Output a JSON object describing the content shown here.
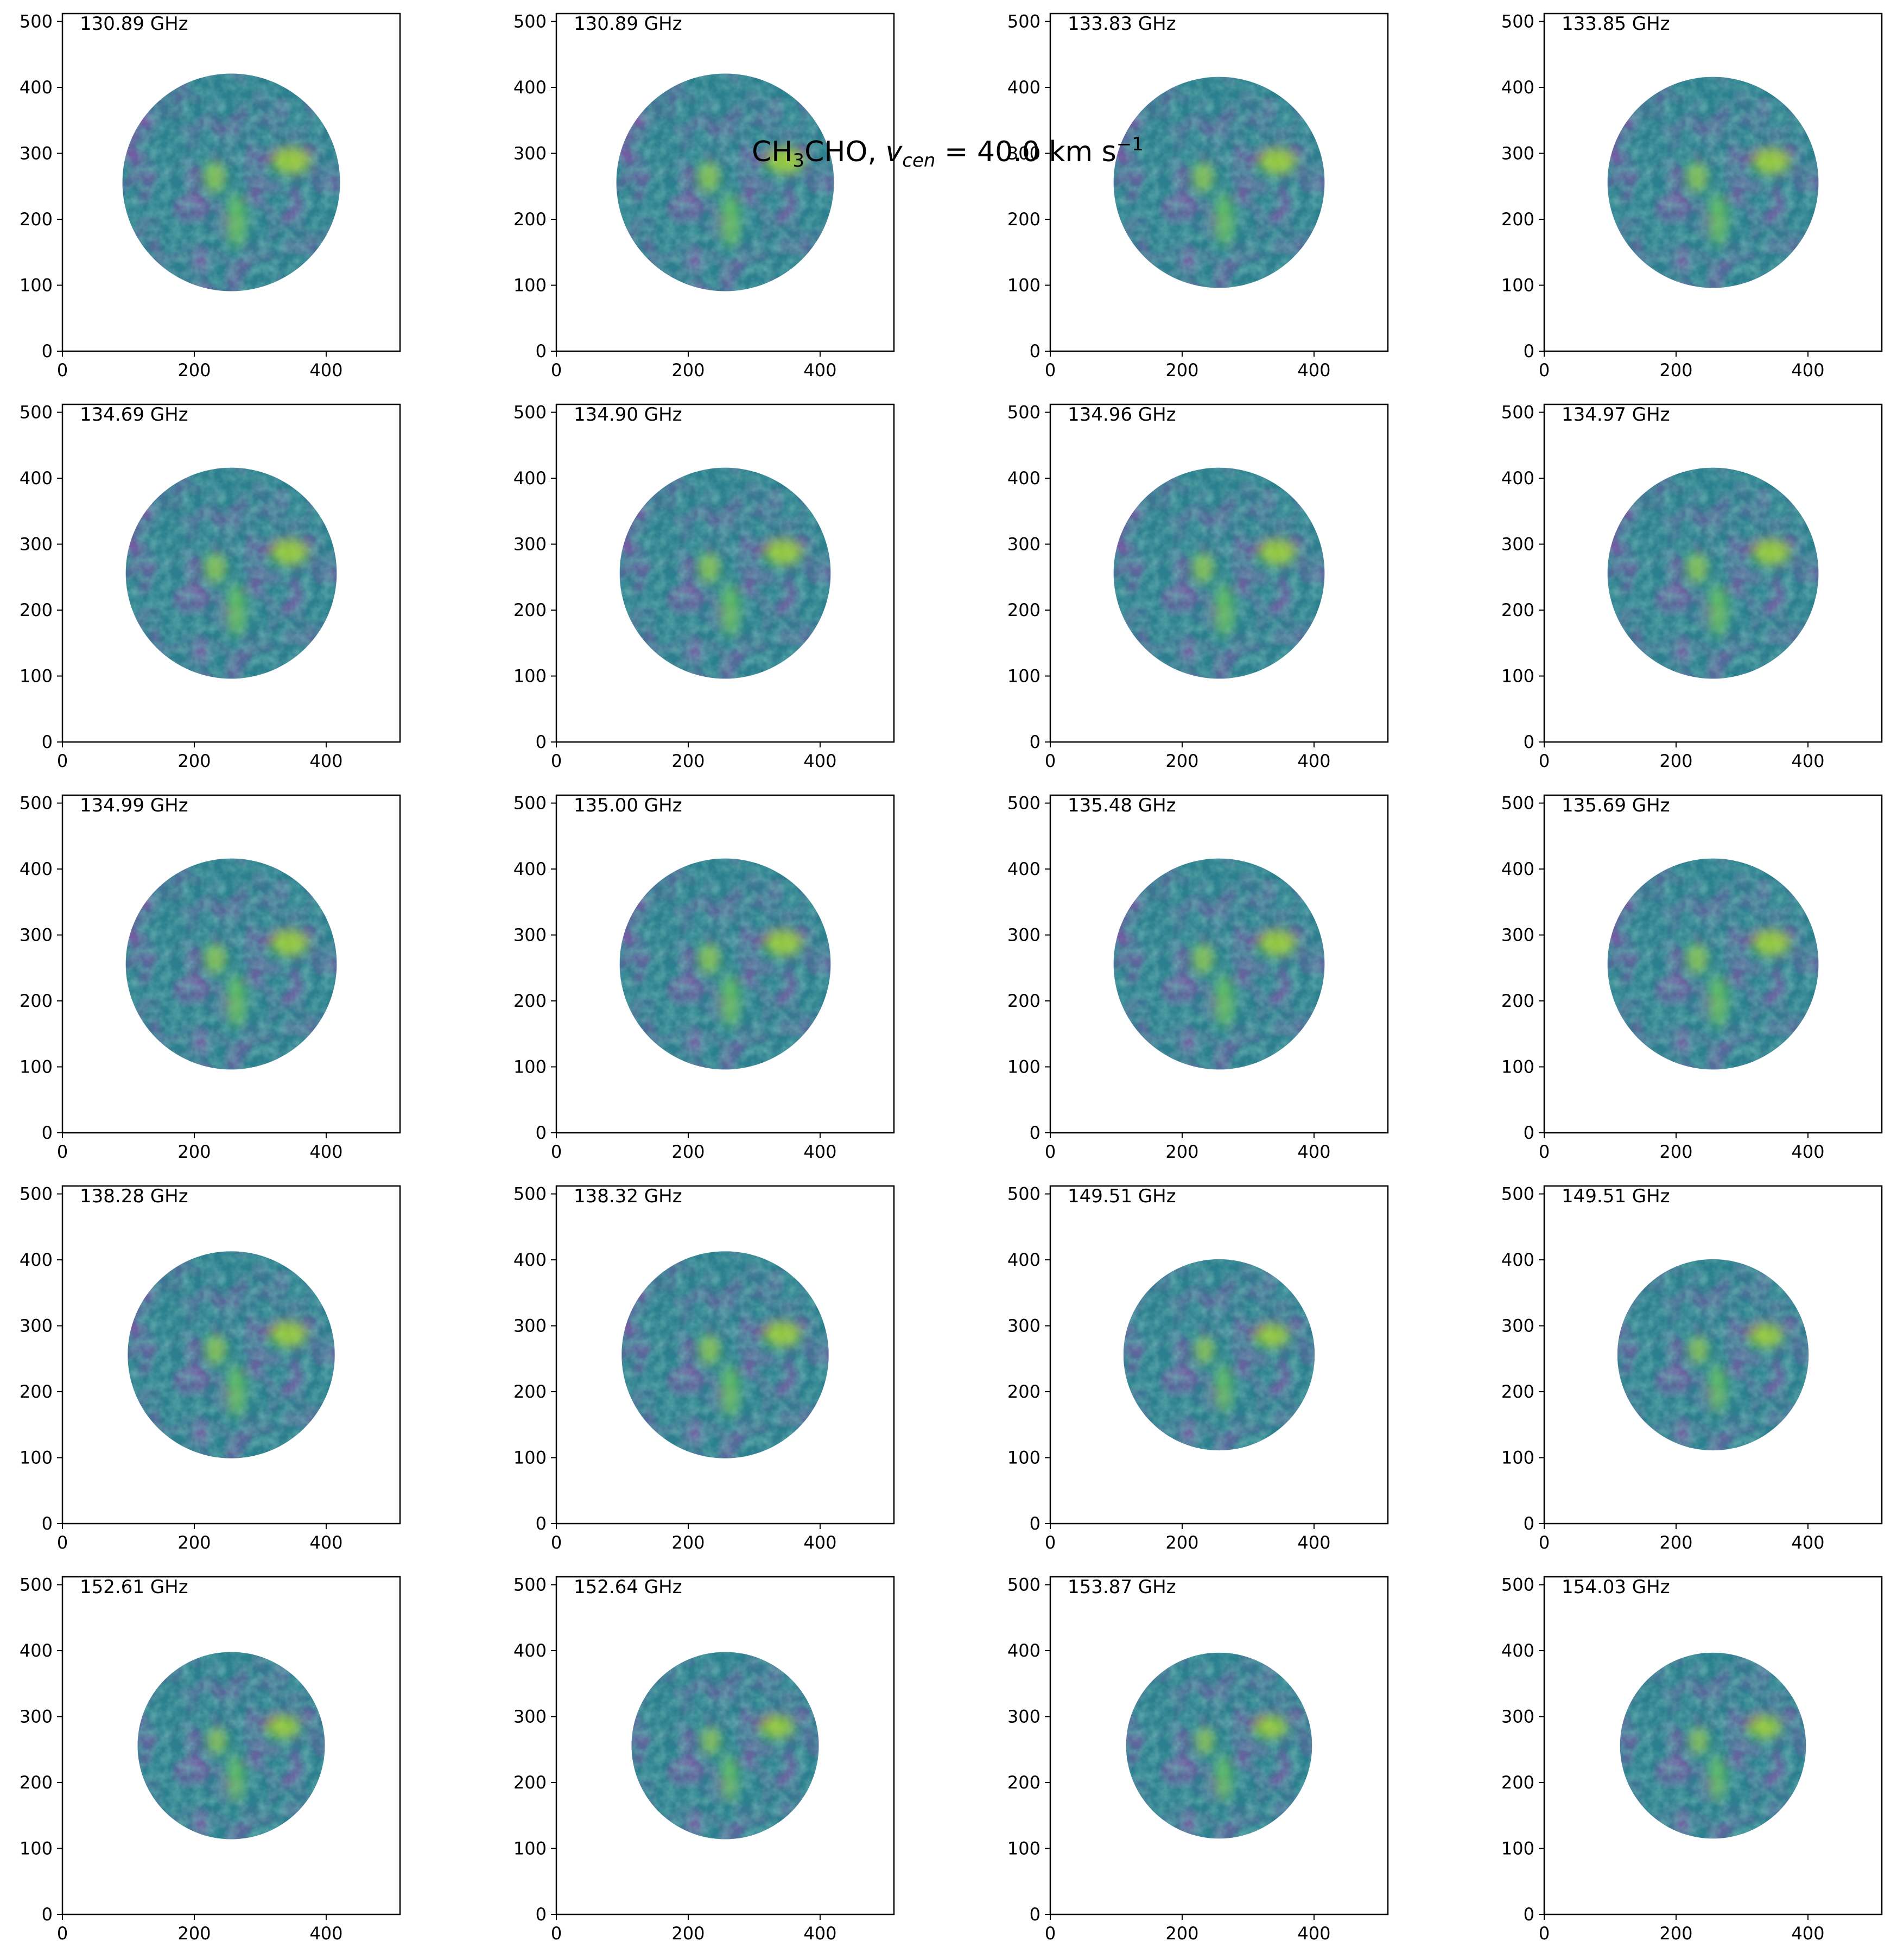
{
  "figure": {
    "suptitle_text": "CH",
    "suptitle_sub": "3",
    "suptitle_text2": "CHO, ",
    "suptitle_var": "v",
    "suptitle_var_sub": "cen",
    "suptitle_value": " =  40.0 km s",
    "suptitle_sup": "−1"
  },
  "chart_data": {
    "type": "heatmap",
    "title": "CH3CHO, v_cen = 40.0 km s^-1",
    "layout": "5 rows x 4 columns of image panels",
    "colormap": "viridis",
    "xlim": [
      0,
      512
    ],
    "ylim": [
      0,
      512
    ],
    "x_ticks": [
      0,
      200,
      400
    ],
    "y_ticks": [
      0,
      100,
      200,
      300,
      400,
      500
    ],
    "x_tick_labels": [
      "0",
      "200",
      "400"
    ],
    "y_tick_labels": [
      "0",
      "100",
      "200",
      "300",
      "400",
      "500"
    ],
    "xlabel": "",
    "ylabel": "",
    "panels": [
      {
        "label": "130.89 GHz",
        "center": [
          256,
          256
        ],
        "radius": 165
      },
      {
        "label": "130.89 GHz",
        "center": [
          256,
          256
        ],
        "radius": 165
      },
      {
        "label": "133.83 GHz",
        "center": [
          256,
          256
        ],
        "radius": 160
      },
      {
        "label": "133.85 GHz",
        "center": [
          256,
          256
        ],
        "radius": 160
      },
      {
        "label": "134.69 GHz",
        "center": [
          256,
          256
        ],
        "radius": 160
      },
      {
        "label": "134.90 GHz",
        "center": [
          256,
          256
        ],
        "radius": 160
      },
      {
        "label": "134.96 GHz",
        "center": [
          256,
          256
        ],
        "radius": 160
      },
      {
        "label": "134.97 GHz",
        "center": [
          256,
          256
        ],
        "radius": 160
      },
      {
        "label": "134.99 GHz",
        "center": [
          256,
          256
        ],
        "radius": 160
      },
      {
        "label": "135.00 GHz",
        "center": [
          256,
          256
        ],
        "radius": 160
      },
      {
        "label": "135.48 GHz",
        "center": [
          256,
          256
        ],
        "radius": 160
      },
      {
        "label": "135.69 GHz",
        "center": [
          256,
          256
        ],
        "radius": 160
      },
      {
        "label": "138.28 GHz",
        "center": [
          256,
          256
        ],
        "radius": 157
      },
      {
        "label": "138.32 GHz",
        "center": [
          256,
          256
        ],
        "radius": 157
      },
      {
        "label": "149.51 GHz",
        "center": [
          256,
          256
        ],
        "radius": 145
      },
      {
        "label": "149.51 GHz",
        "center": [
          256,
          256
        ],
        "radius": 145
      },
      {
        "label": "152.61 GHz",
        "center": [
          256,
          256
        ],
        "radius": 142
      },
      {
        "label": "152.64 GHz",
        "center": [
          256,
          256
        ],
        "radius": 142
      },
      {
        "label": "153.87 GHz",
        "center": [
          256,
          256
        ],
        "radius": 141
      },
      {
        "label": "154.03 GHz",
        "center": [
          256,
          256
        ],
        "radius": 141
      }
    ]
  }
}
